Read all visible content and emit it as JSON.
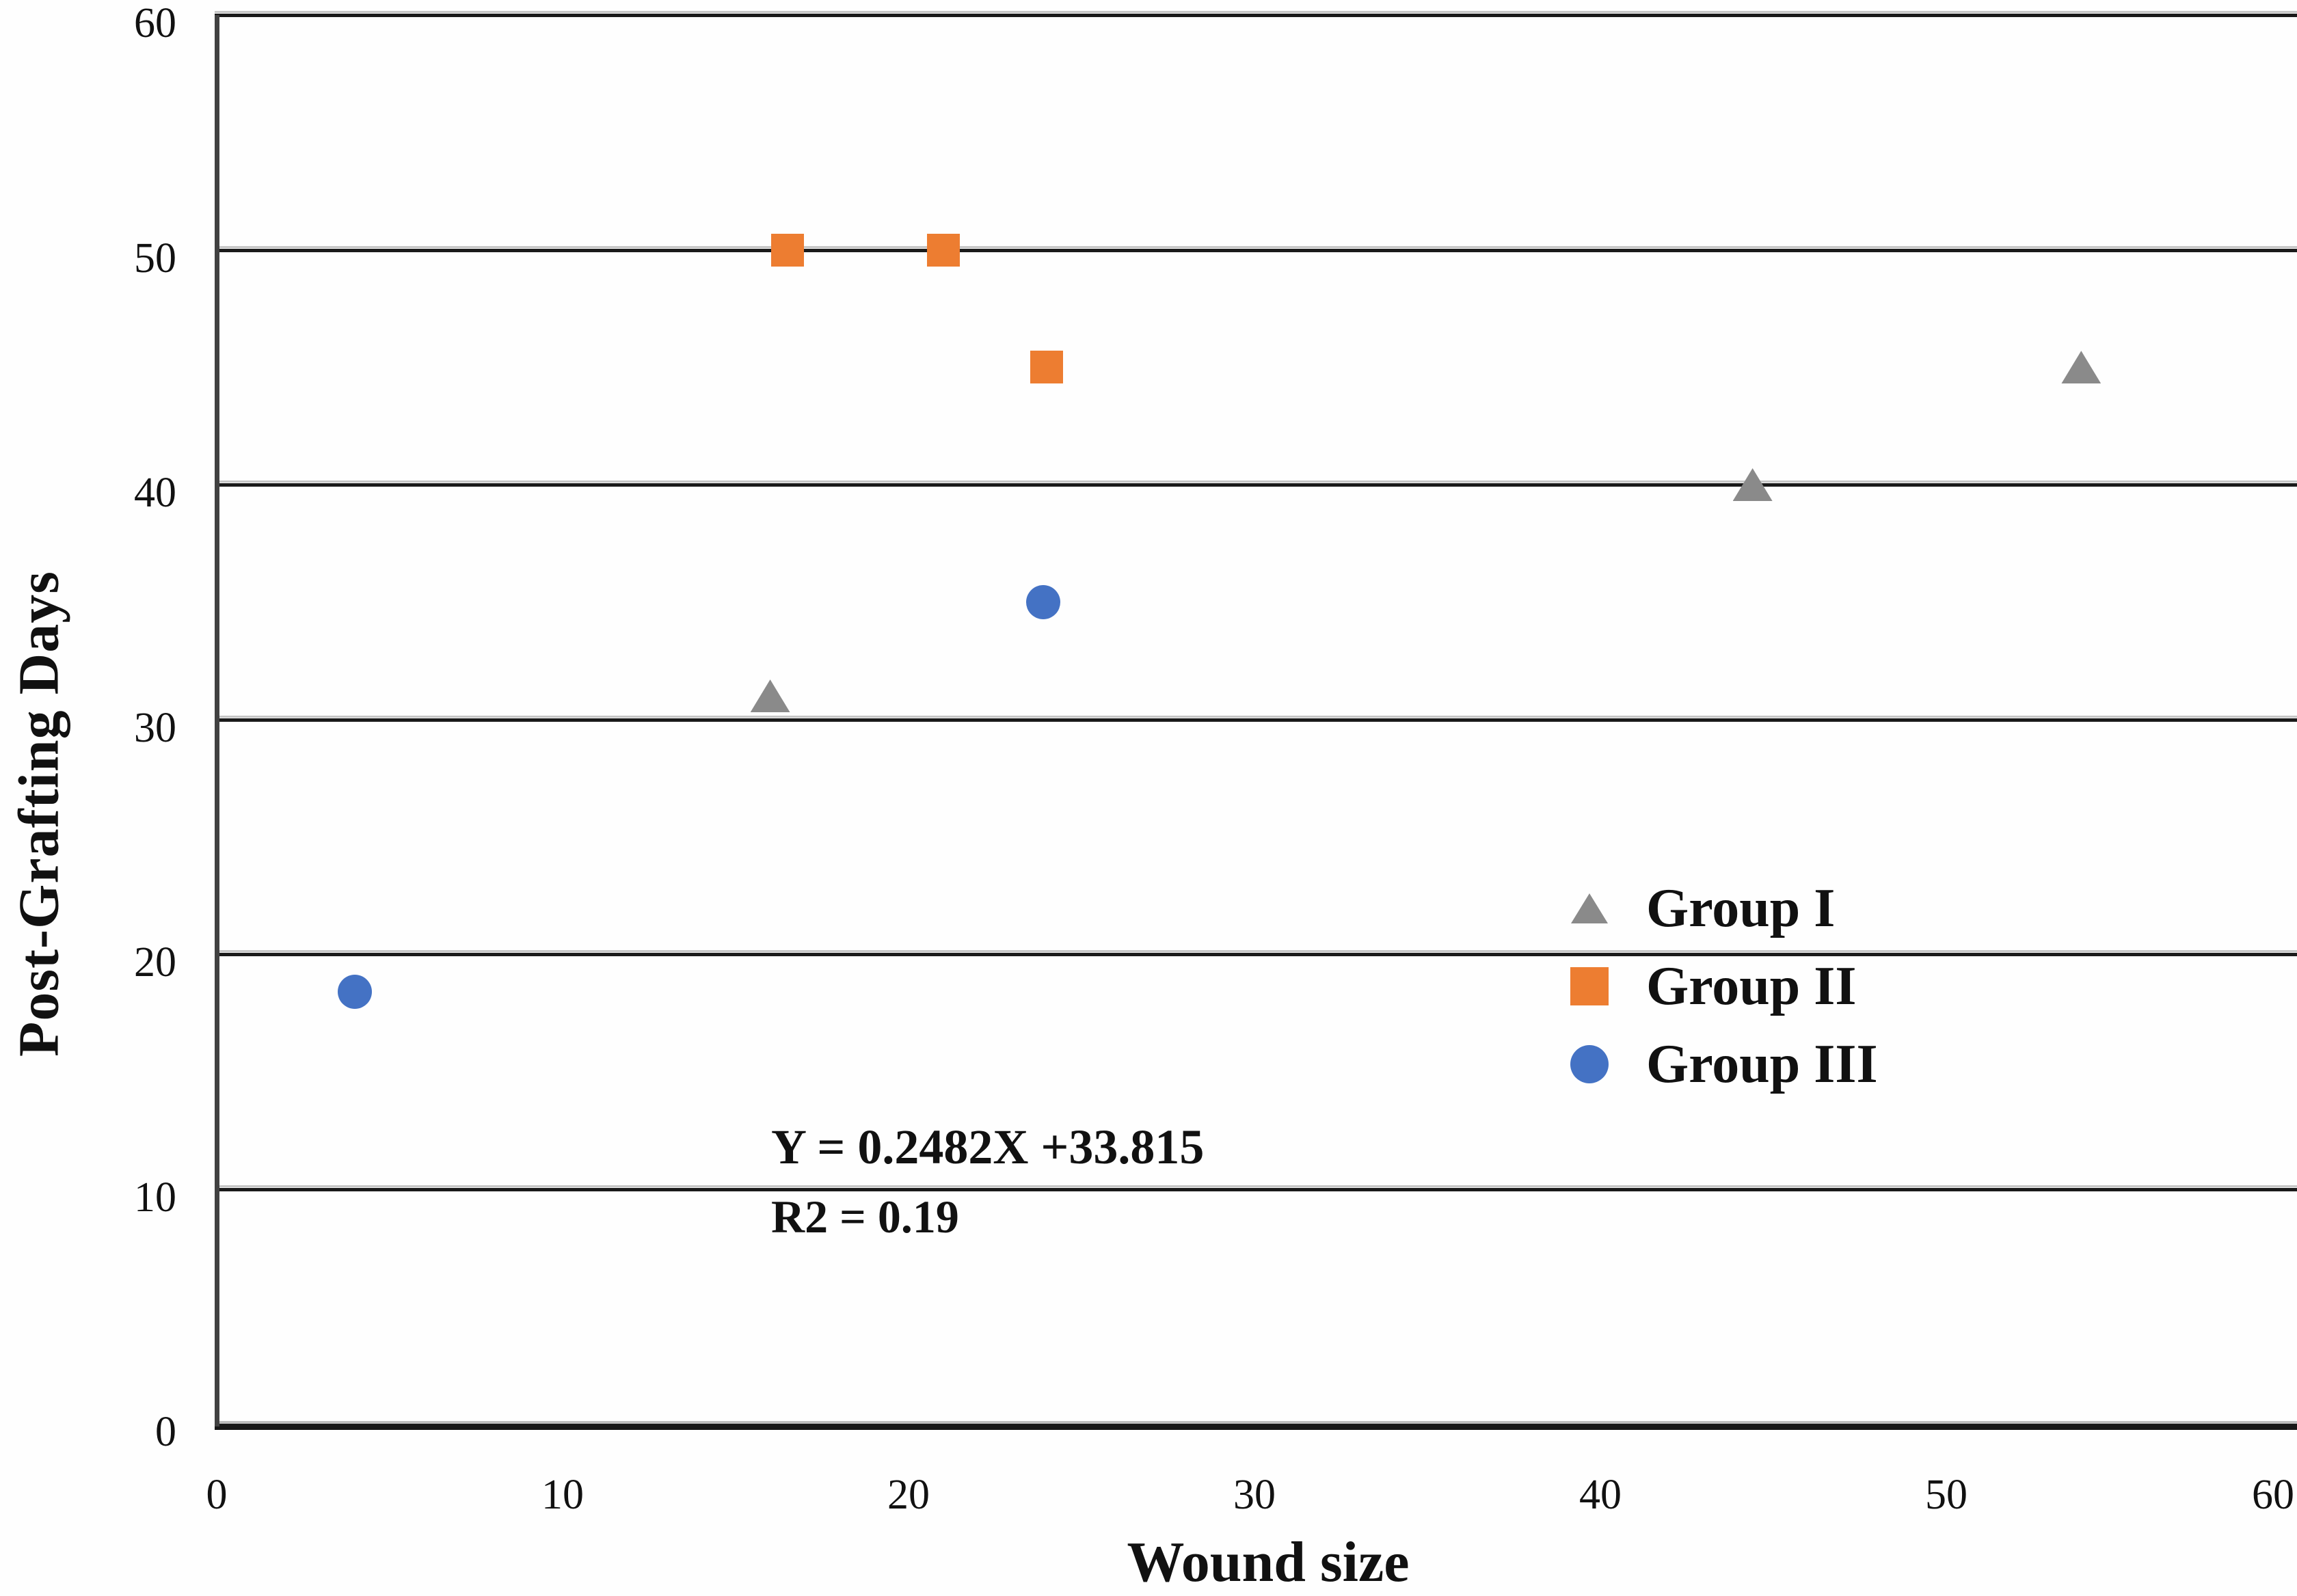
{
  "figure": {
    "background": "#fefefe",
    "gridline_color": "#1a1a1a",
    "axis_line_color": "#414141",
    "text_color": "#111111"
  },
  "chart_data": {
    "type": "scatter",
    "title": "",
    "xlabel": "Wound size",
    "ylabel": "Post-Grafting Days",
    "xlim": [
      0,
      60
    ],
    "ylim": [
      0,
      60
    ],
    "xticks": [
      0,
      10,
      20,
      30,
      40,
      50,
      60
    ],
    "yticks": [
      0,
      10,
      20,
      30,
      40,
      50,
      60
    ],
    "grid": "horizontal-only",
    "legend_position": "center-right",
    "series": [
      {
        "name": "Group I",
        "marker": "triangle",
        "color": "#8A8A8A",
        "points": [
          [
            16,
            31
          ],
          [
            44.4,
            40
          ],
          [
            53.9,
            45
          ]
        ]
      },
      {
        "name": "Group II",
        "marker": "square",
        "color": "#ED7D31",
        "points": [
          [
            16.5,
            50
          ],
          [
            21,
            50
          ],
          [
            24,
            45
          ]
        ]
      },
      {
        "name": "Group III",
        "marker": "circle",
        "color": "#4472C4",
        "points": [
          [
            4,
            18.4
          ],
          [
            23.9,
            35
          ]
        ]
      }
    ],
    "annotation": {
      "line1": "Y = 0.2482X +33.815",
      "line2": "R2 = 0.19"
    }
  }
}
